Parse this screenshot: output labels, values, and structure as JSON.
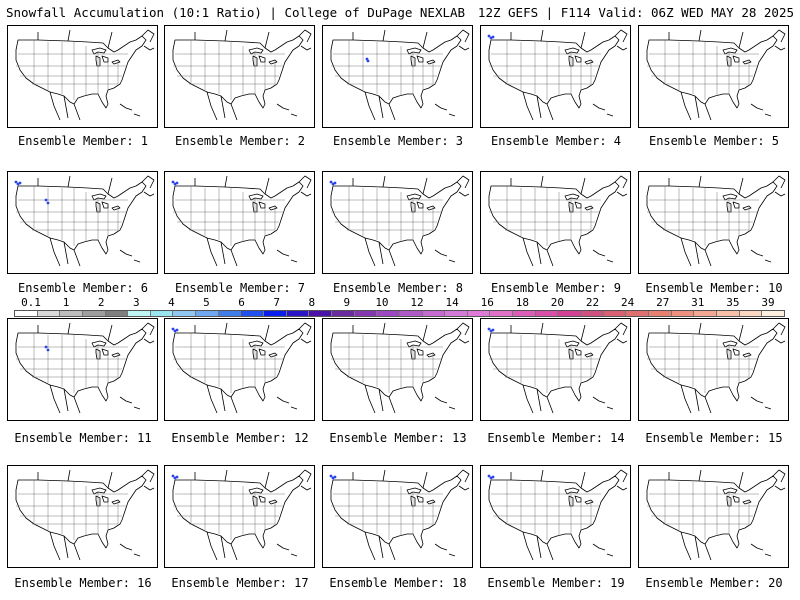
{
  "header": {
    "title": "Snowfall Accumulation (10:1 Ratio) | College of DuPage NEXLAB",
    "run_info": "12Z GEFS | F114 Valid: 06Z WED MAY 28 2025"
  },
  "members": [
    {
      "label": "Ensemble Member: 1",
      "snow_spots": []
    },
    {
      "label": "Ensemble Member: 2",
      "snow_spots": []
    },
    {
      "label": "Ensemble Member: 3",
      "snow_spots": [
        "wyoming"
      ]
    },
    {
      "label": "Ensemble Member: 4",
      "snow_spots": [
        "pacific-northwest"
      ]
    },
    {
      "label": "Ensemble Member: 5",
      "snow_spots": []
    },
    {
      "label": "Ensemble Member: 6",
      "snow_spots": [
        "pacific-northwest",
        "montana"
      ]
    },
    {
      "label": "Ensemble Member: 7",
      "snow_spots": [
        "pacific-northwest"
      ]
    },
    {
      "label": "Ensemble Member: 8",
      "snow_spots": [
        "pacific-northwest"
      ]
    },
    {
      "label": "Ensemble Member: 9",
      "snow_spots": []
    },
    {
      "label": "Ensemble Member: 10",
      "snow_spots": []
    },
    {
      "label": "Ensemble Member: 11",
      "snow_spots": [
        "montana"
      ]
    },
    {
      "label": "Ensemble Member: 12",
      "snow_spots": [
        "pacific-northwest"
      ]
    },
    {
      "label": "Ensemble Member: 13",
      "snow_spots": []
    },
    {
      "label": "Ensemble Member: 14",
      "snow_spots": [
        "pacific-northwest"
      ]
    },
    {
      "label": "Ensemble Member: 15",
      "snow_spots": []
    },
    {
      "label": "Ensemble Member: 16",
      "snow_spots": []
    },
    {
      "label": "Ensemble Member: 17",
      "snow_spots": [
        "pacific-northwest"
      ]
    },
    {
      "label": "Ensemble Member: 18",
      "snow_spots": [
        "pacific-northwest"
      ]
    },
    {
      "label": "Ensemble Member: 19",
      "snow_spots": [
        "pacific-northwest"
      ]
    },
    {
      "label": "Ensemble Member: 20",
      "snow_spots": []
    }
  ],
  "legend": {
    "tick_labels": [
      "0.1",
      "1",
      "2",
      "3",
      "4",
      "5",
      "6",
      "7",
      "8",
      "9",
      "10",
      "12",
      "14",
      "16",
      "18",
      "20",
      "22",
      "24",
      "27",
      "31",
      "35",
      "39"
    ],
    "colors": [
      "#ffffff",
      "#d9d9d9",
      "#bdbdbd",
      "#9e9e9e",
      "#7f7f7f",
      "#bff4f4",
      "#99e6f0",
      "#8fc6f2",
      "#6fa8f0",
      "#3f7de8",
      "#2050f0",
      "#0a1ef0",
      "#2a16c8",
      "#4a12a8",
      "#6a2aa0",
      "#8438b0",
      "#9c48c0",
      "#b05ac8",
      "#c46ad0",
      "#d47ad8",
      "#e07ad8",
      "#e070c8",
      "#dc5eb8",
      "#d84ea8",
      "#d44094",
      "#d05080",
      "#d86072",
      "#e07070",
      "#e88070",
      "#f09080",
      "#f4a894",
      "#f8c0a8",
      "#fcd8c0",
      "#fef0e0"
    ]
  }
}
